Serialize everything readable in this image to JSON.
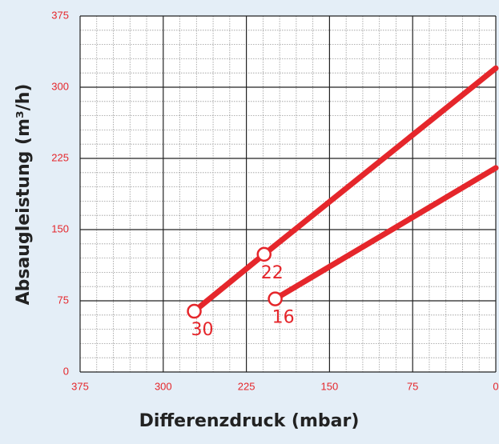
{
  "chart_data": {
    "type": "line",
    "xlabel": "Differenzdruck (mbar)",
    "ylabel": "Absaugleistung (m³/h)",
    "x_reversed": true,
    "xlim": [
      375,
      0
    ],
    "xticks": [
      375,
      300,
      225,
      150,
      75,
      0
    ],
    "ylim": [
      0,
      375
    ],
    "yticks": [
      0,
      75,
      150,
      225,
      300,
      375
    ],
    "xminor": [
      360,
      345,
      330,
      315,
      285,
      270,
      255,
      240,
      210,
      195,
      180,
      165,
      135,
      120,
      105,
      90,
      60,
      45,
      30,
      15
    ],
    "yminor": [
      15,
      30,
      45,
      60,
      90,
      105,
      120,
      135,
      165,
      180,
      195,
      210,
      240,
      255,
      270,
      285,
      315,
      330,
      345,
      360
    ],
    "grid": true,
    "series": [
      {
        "color": "#e5262b",
        "x": [
          272,
          209,
          0
        ],
        "values": [
          64,
          124,
          320
        ],
        "point_labels": [
          "30",
          "22",
          null
        ]
      },
      {
        "color": "#e5262b",
        "x": [
          199,
          0
        ],
        "values": [
          77,
          215
        ],
        "point_labels": [
          "16",
          null
        ]
      }
    ]
  }
}
